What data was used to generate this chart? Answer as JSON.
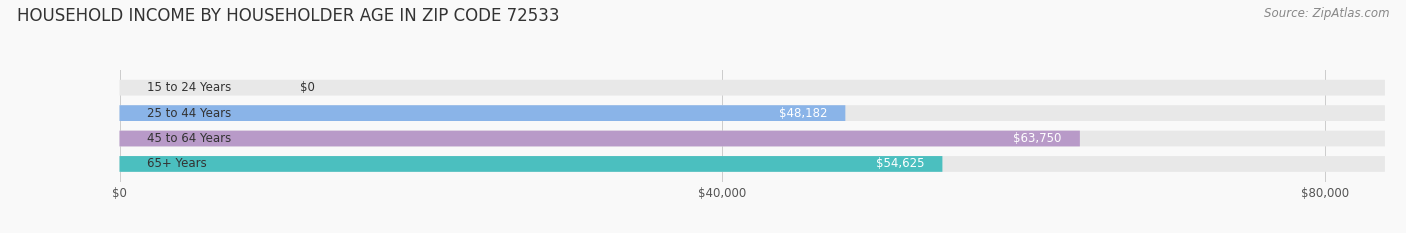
{
  "title": "HOUSEHOLD INCOME BY HOUSEHOLDER AGE IN ZIP CODE 72533",
  "source": "Source: ZipAtlas.com",
  "categories": [
    "15 to 24 Years",
    "25 to 44 Years",
    "45 to 64 Years",
    "65+ Years"
  ],
  "values": [
    0,
    48182,
    63750,
    54625
  ],
  "bar_colors": [
    "#f4a0a0",
    "#8ab4e8",
    "#b89ac8",
    "#4bbfbf"
  ],
  "bar_bg_color": "#e8e8e8",
  "value_labels": [
    "$0",
    "$48,182",
    "$63,750",
    "$54,625"
  ],
  "x_ticks": [
    0,
    40000,
    80000
  ],
  "x_tick_labels": [
    "$0",
    "$40,000",
    "$80,000"
  ],
  "xlim": [
    0,
    84000
  ],
  "background_color": "#f9f9f9",
  "title_fontsize": 12,
  "source_fontsize": 8.5,
  "label_fontsize": 8.5,
  "value_fontsize": 8.5
}
